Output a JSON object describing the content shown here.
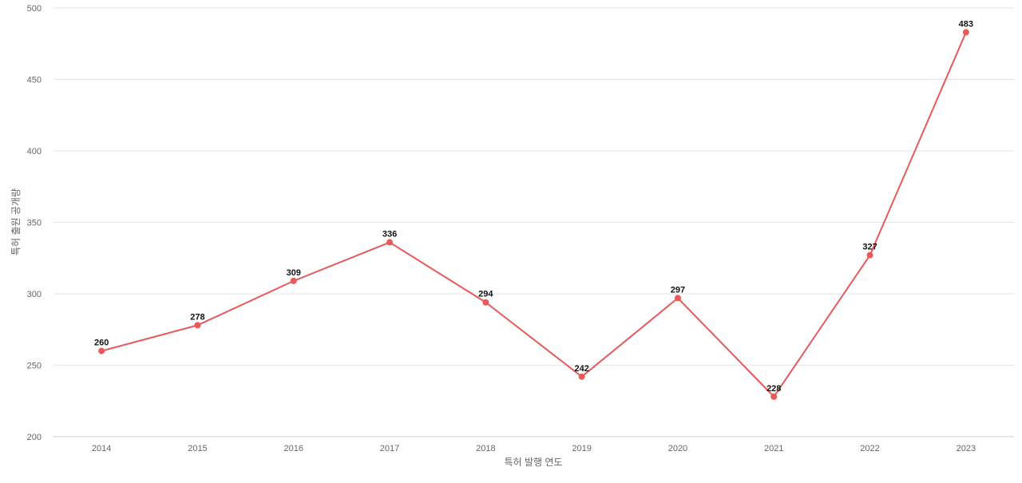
{
  "chart_data": {
    "type": "line",
    "title": "",
    "xlabel": "특허 발행 연도",
    "ylabel": "특허 출원 공개량",
    "categories": [
      "2014",
      "2015",
      "2016",
      "2017",
      "2018",
      "2019",
      "2020",
      "2021",
      "2022",
      "2023"
    ],
    "series": [
      {
        "values": [
          260,
          278,
          309,
          336,
          294,
          242,
          297,
          228,
          327,
          483
        ]
      }
    ],
    "ylim": [
      200,
      500
    ],
    "yticks": [
      200,
      250,
      300,
      350,
      400,
      450,
      500
    ],
    "grid": true,
    "legend": "none",
    "data_labels": true,
    "colors": {
      "line": "#e85a5a",
      "grid": "#e5e5e5"
    }
  }
}
